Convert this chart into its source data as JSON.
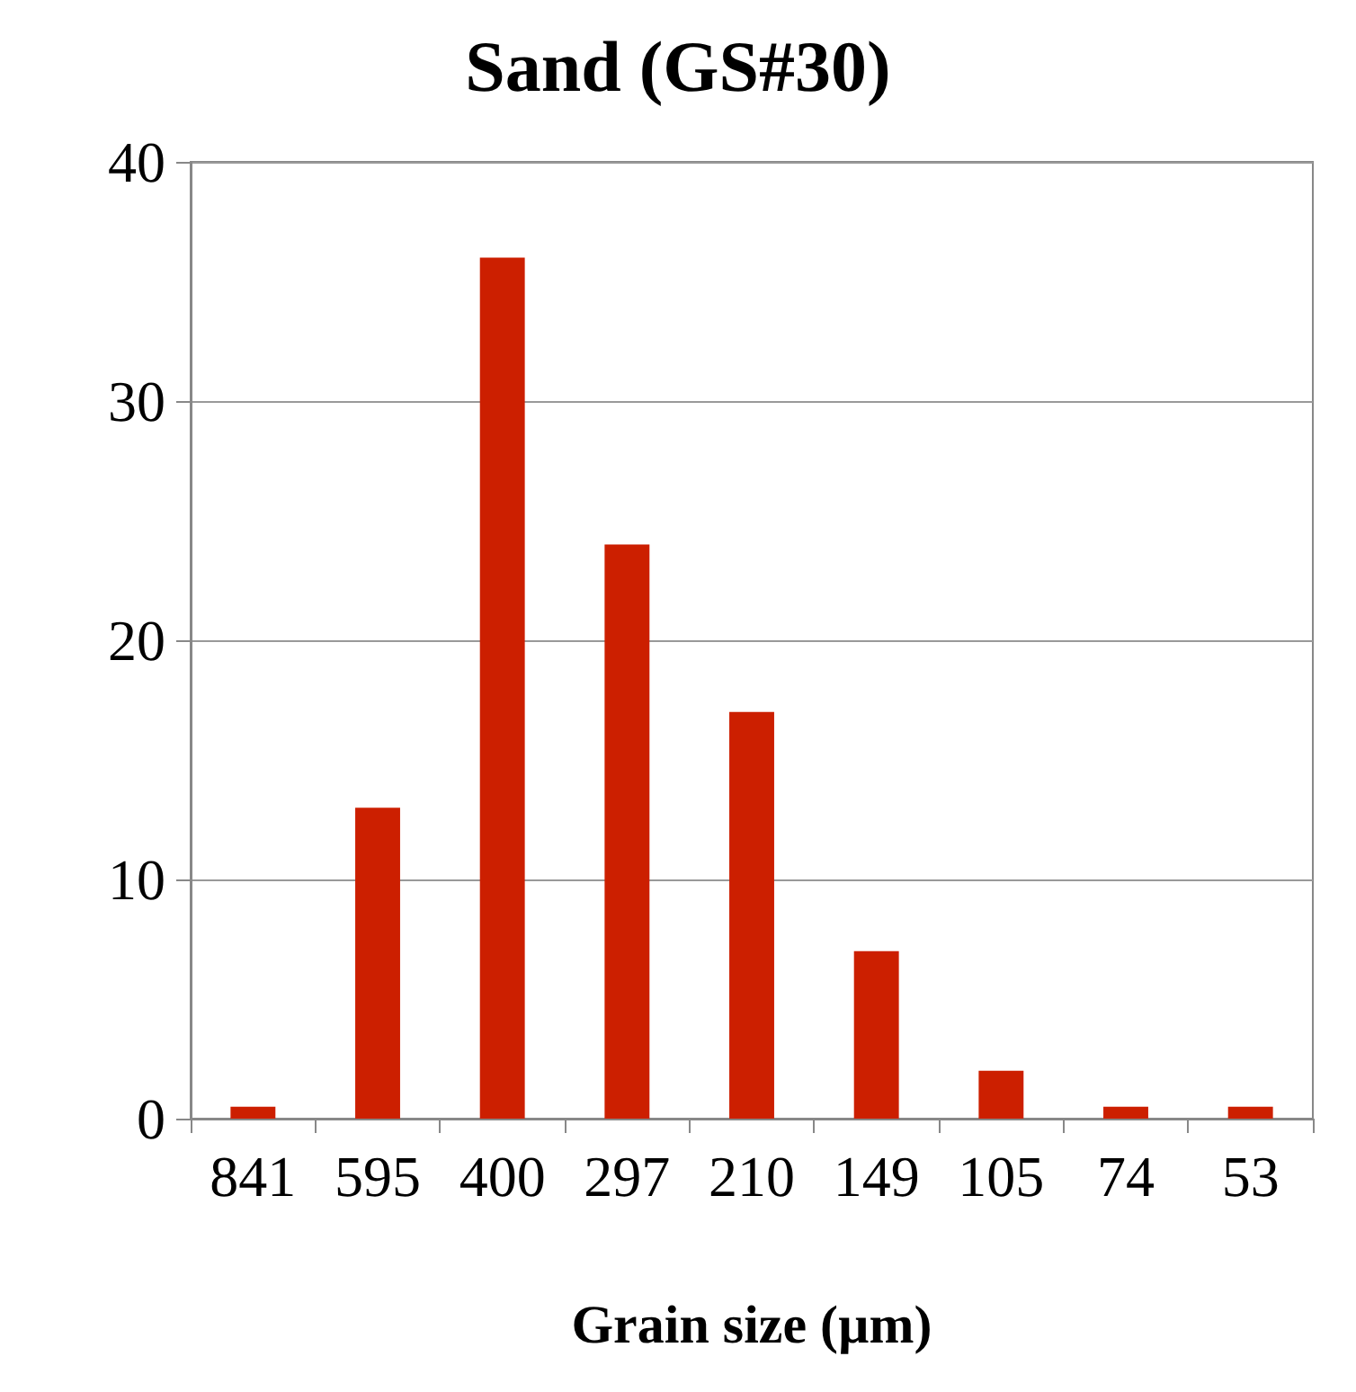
{
  "chart_data": {
    "type": "bar",
    "title": "Sand (GS#30)",
    "xlabel": "Grain size (µm)",
    "categories": [
      "841",
      "595",
      "400",
      "297",
      "210",
      "149",
      "105",
      "74",
      "53"
    ],
    "values": [
      0.5,
      13,
      36,
      24,
      17,
      7,
      2,
      0.5,
      0.5
    ],
    "color": "#cc1f00",
    "ylim": [
      0,
      40
    ],
    "yticks": [
      0,
      10,
      20,
      30,
      40
    ],
    "grid": "y"
  }
}
